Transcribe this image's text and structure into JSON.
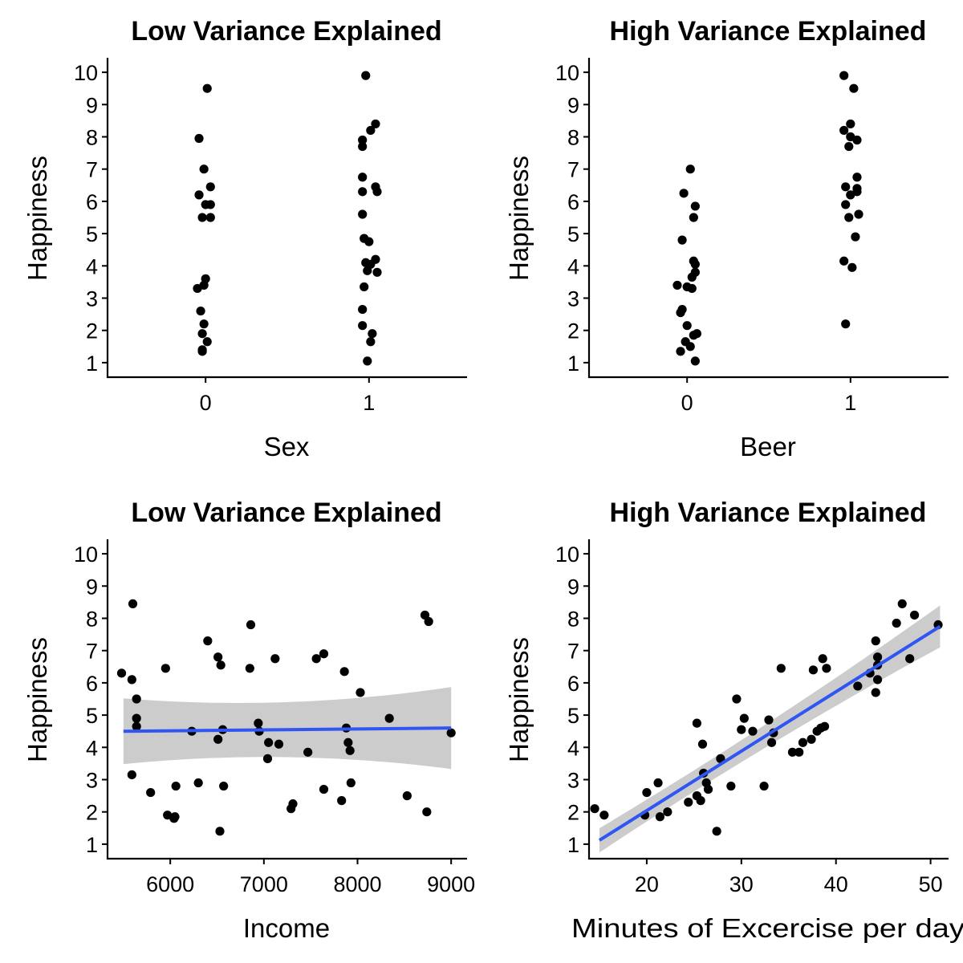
{
  "chart_data": [
    {
      "type": "scatter",
      "title": "Low Variance Explained",
      "xlabel": "Sex",
      "ylabel": "Happiness",
      "xlim": [
        -0.6,
        1.6
      ],
      "ylim": [
        0.55,
        10.45
      ],
      "xticks": [
        0,
        1
      ],
      "yticks": [
        1,
        2,
        3,
        4,
        5,
        6,
        7,
        8,
        9,
        10
      ],
      "grid": false,
      "points": [
        [
          0.01,
          9.5
        ],
        [
          -0.04,
          7.95
        ],
        [
          -0.01,
          7.0
        ],
        [
          0.03,
          6.45
        ],
        [
          -0.04,
          6.2
        ],
        [
          0.0,
          5.9
        ],
        [
          0.03,
          5.9
        ],
        [
          -0.02,
          5.5
        ],
        [
          0.03,
          5.5
        ],
        [
          0.0,
          3.6
        ],
        [
          -0.01,
          3.4
        ],
        [
          -0.05,
          3.3
        ],
        [
          -0.03,
          2.6
        ],
        [
          -0.01,
          2.2
        ],
        [
          -0.02,
          1.9
        ],
        [
          0.01,
          1.65
        ],
        [
          -0.02,
          1.4
        ],
        [
          -0.02,
          1.35
        ],
        [
          0.98,
          9.9
        ],
        [
          0.96,
          7.9
        ],
        [
          0.96,
          7.7
        ],
        [
          1.04,
          8.4
        ],
        [
          1.01,
          8.2
        ],
        [
          0.96,
          6.75
        ],
        [
          1.04,
          6.45
        ],
        [
          1.05,
          6.3
        ],
        [
          0.96,
          6.3
        ],
        [
          0.96,
          5.6
        ],
        [
          0.97,
          4.85
        ],
        [
          1.0,
          4.75
        ],
        [
          1.04,
          4.2
        ],
        [
          0.98,
          4.1
        ],
        [
          1.01,
          4.05
        ],
        [
          1.05,
          3.8
        ],
        [
          0.99,
          3.85
        ],
        [
          0.97,
          3.35
        ],
        [
          0.96,
          2.65
        ],
        [
          0.96,
          2.15
        ],
        [
          1.02,
          1.9
        ],
        [
          1.01,
          1.65
        ],
        [
          0.99,
          1.05
        ]
      ]
    },
    {
      "type": "scatter",
      "title": "High Variance Explained",
      "xlabel": "Beer",
      "ylabel": "Happiness",
      "xlim": [
        -0.6,
        1.6
      ],
      "ylim": [
        0.55,
        10.45
      ],
      "xticks": [
        0,
        1
      ],
      "yticks": [
        1,
        2,
        3,
        4,
        5,
        6,
        7,
        8,
        9,
        10
      ],
      "grid": false,
      "points": [
        [
          0.02,
          7.0
        ],
        [
          -0.02,
          6.25
        ],
        [
          0.05,
          5.85
        ],
        [
          0.04,
          5.5
        ],
        [
          -0.03,
          4.8
        ],
        [
          0.04,
          4.15
        ],
        [
          0.05,
          4.05
        ],
        [
          0.05,
          3.8
        ],
        [
          0.03,
          3.65
        ],
        [
          -0.06,
          3.4
        ],
        [
          0.03,
          3.3
        ],
        [
          0.0,
          3.35
        ],
        [
          -0.03,
          2.65
        ],
        [
          -0.04,
          2.55
        ],
        [
          0.0,
          2.15
        ],
        [
          0.06,
          1.9
        ],
        [
          0.04,
          1.85
        ],
        [
          -0.01,
          1.65
        ],
        [
          0.02,
          1.5
        ],
        [
          -0.04,
          1.35
        ],
        [
          0.05,
          1.05
        ],
        [
          0.96,
          9.9
        ],
        [
          1.02,
          9.5
        ],
        [
          0.96,
          8.2
        ],
        [
          1.0,
          8.4
        ],
        [
          1.0,
          8.0
        ],
        [
          1.04,
          7.9
        ],
        [
          0.99,
          7.7
        ],
        [
          0.97,
          6.45
        ],
        [
          1.04,
          6.75
        ],
        [
          1.0,
          6.2
        ],
        [
          1.04,
          6.4
        ],
        [
          1.04,
          6.3
        ],
        [
          0.97,
          5.9
        ],
        [
          1.05,
          5.6
        ],
        [
          0.99,
          5.5
        ],
        [
          1.03,
          4.9
        ],
        [
          0.96,
          4.15
        ],
        [
          1.01,
          3.95
        ],
        [
          0.97,
          2.2
        ]
      ]
    },
    {
      "type": "scatter",
      "title": "Low Variance Explained",
      "xlabel": "Income",
      "ylabel": "Happiness",
      "xlim": [
        5330,
        9170
      ],
      "ylim": [
        0.55,
        10.45
      ],
      "xticks": [
        6000,
        7000,
        8000,
        9000
      ],
      "yticks": [
        1,
        2,
        3,
        4,
        5,
        6,
        7,
        8,
        9,
        10
      ],
      "grid": false,
      "trend": {
        "x": [
          5500,
          9000
        ],
        "y": [
          4.5,
          4.6
        ],
        "ci_lower": [
          3.48,
          3.33
        ],
        "ci_upper": [
          5.52,
          5.87
        ],
        "color": "#2f55f2"
      },
      "points": [
        [
          5600,
          8.45
        ],
        [
          5480,
          6.3
        ],
        [
          5590,
          6.1
        ],
        [
          5640,
          5.5
        ],
        [
          5640,
          4.9
        ],
        [
          5640,
          4.65
        ],
        [
          5590,
          3.15
        ],
        [
          5790,
          2.6
        ],
        [
          5950,
          6.45
        ],
        [
          5970,
          1.9
        ],
        [
          6050,
          1.85
        ],
        [
          6040,
          1.8
        ],
        [
          6060,
          2.8
        ],
        [
          6230,
          4.5
        ],
        [
          6300,
          2.9
        ],
        [
          6400,
          7.3
        ],
        [
          6510,
          6.8
        ],
        [
          6540,
          6.55
        ],
        [
          6510,
          4.25
        ],
        [
          6560,
          4.55
        ],
        [
          6570,
          2.8
        ],
        [
          6530,
          1.4
        ],
        [
          6860,
          7.8
        ],
        [
          6850,
          6.45
        ],
        [
          6940,
          4.75
        ],
        [
          6950,
          4.5
        ],
        [
          7050,
          4.15
        ],
        [
          7040,
          3.65
        ],
        [
          7120,
          6.75
        ],
        [
          7160,
          4.1
        ],
        [
          7290,
          2.1
        ],
        [
          7310,
          2.25
        ],
        [
          7470,
          3.85
        ],
        [
          7560,
          6.75
        ],
        [
          7640,
          6.9
        ],
        [
          7640,
          2.7
        ],
        [
          7830,
          2.35
        ],
        [
          7860,
          6.35
        ],
        [
          7880,
          4.6
        ],
        [
          7900,
          4.15
        ],
        [
          7920,
          3.9
        ],
        [
          7930,
          2.9
        ],
        [
          8030,
          5.7
        ],
        [
          8340,
          4.9
        ],
        [
          8530,
          2.5
        ],
        [
          8720,
          8.1
        ],
        [
          8760,
          7.9
        ],
        [
          8740,
          2.0
        ],
        [
          9000,
          4.45
        ]
      ]
    },
    {
      "type": "scatter",
      "title": "High Variance Explained",
      "xlabel": "Minutes of Excercise per day",
      "ylabel": "Happiness",
      "xlim": [
        13.9,
        51.9
      ],
      "ylim": [
        0.55,
        10.45
      ],
      "xticks": [
        20,
        30,
        40,
        50
      ],
      "yticks": [
        1,
        2,
        3,
        4,
        5,
        6,
        7,
        8,
        9,
        10
      ],
      "grid": false,
      "trend": {
        "x": [
          15,
          51
        ],
        "y": [
          1.12,
          7.75
        ],
        "ci_lower": [
          0.75,
          7.1
        ],
        "ci_upper": [
          1.5,
          8.4
        ],
        "color": "#2f55f2"
      },
      "points": [
        [
          14.5,
          2.1
        ],
        [
          15.5,
          1.9
        ],
        [
          19.8,
          1.9
        ],
        [
          20.0,
          2.6
        ],
        [
          21.2,
          2.9
        ],
        [
          21.4,
          1.85
        ],
        [
          22.2,
          2.0
        ],
        [
          24.4,
          2.3
        ],
        [
          25.3,
          2.5
        ],
        [
          25.3,
          4.75
        ],
        [
          25.7,
          2.35
        ],
        [
          25.9,
          4.1
        ],
        [
          26.0,
          3.2
        ],
        [
          26.3,
          2.9
        ],
        [
          26.5,
          2.7
        ],
        [
          27.4,
          1.4
        ],
        [
          27.8,
          3.65
        ],
        [
          28.9,
          2.8
        ],
        [
          29.5,
          5.5
        ],
        [
          30.0,
          4.55
        ],
        [
          30.3,
          4.9
        ],
        [
          31.2,
          4.5
        ],
        [
          32.4,
          2.8
        ],
        [
          32.9,
          4.85
        ],
        [
          33.2,
          4.15
        ],
        [
          33.4,
          4.45
        ],
        [
          34.2,
          6.45
        ],
        [
          35.4,
          3.85
        ],
        [
          36.1,
          3.85
        ],
        [
          36.5,
          4.15
        ],
        [
          37.4,
          4.25
        ],
        [
          37.6,
          6.4
        ],
        [
          38.0,
          4.5
        ],
        [
          38.4,
          4.6
        ],
        [
          38.6,
          6.75
        ],
        [
          38.8,
          4.65
        ],
        [
          39.0,
          6.45
        ],
        [
          42.3,
          5.9
        ],
        [
          43.6,
          6.3
        ],
        [
          44.2,
          7.3
        ],
        [
          44.2,
          5.7
        ],
        [
          44.4,
          6.8
        ],
        [
          44.4,
          6.55
        ],
        [
          44.4,
          6.1
        ],
        [
          46.4,
          7.85
        ],
        [
          47.0,
          8.45
        ],
        [
          47.8,
          6.75
        ],
        [
          48.3,
          8.1
        ],
        [
          50.8,
          7.8
        ]
      ]
    }
  ]
}
